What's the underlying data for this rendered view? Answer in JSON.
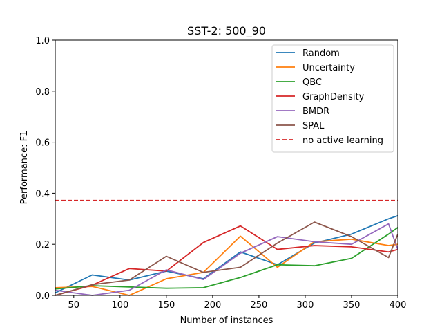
{
  "chart_data": {
    "type": "line",
    "title": "SST-2: 500_90",
    "xlabel": "Number of instances",
    "ylabel": "Performance: F1",
    "xlim": [
      30,
      400
    ],
    "ylim": [
      0,
      1.0
    ],
    "xticks": [
      50,
      100,
      150,
      200,
      250,
      300,
      350,
      400
    ],
    "yticks": [
      0.0,
      0.2,
      0.4,
      0.6,
      0.8,
      1.0
    ],
    "ytick_labels": [
      "0.0",
      "0.2",
      "0.4",
      "0.6",
      "0.8",
      "1.0"
    ],
    "x": [
      30,
      70,
      110,
      150,
      190,
      230,
      270,
      310,
      350,
      390,
      400
    ],
    "series": [
      {
        "name": "Random",
        "color": "#1f77b4",
        "values": [
          0.01,
          0.08,
          0.06,
          0.095,
          0.065,
          0.17,
          0.12,
          0.205,
          0.24,
          0.3,
          0.312
        ]
      },
      {
        "name": "Uncertainty",
        "color": "#ff7f0e",
        "values": [
          0.03,
          0.035,
          0.0,
          0.065,
          0.09,
          0.232,
          0.11,
          0.21,
          0.22,
          0.195,
          0.2
        ]
      },
      {
        "name": "QBC",
        "color": "#2ca02c",
        "values": [
          0.025,
          0.038,
          0.033,
          0.028,
          0.03,
          0.07,
          0.12,
          0.116,
          0.145,
          0.24,
          0.266
        ]
      },
      {
        "name": "GraphDensity",
        "color": "#d62728",
        "values": [
          0.0,
          0.04,
          0.105,
          0.095,
          0.207,
          0.272,
          0.18,
          0.195,
          0.19,
          0.17,
          0.18
        ]
      },
      {
        "name": "BMDR",
        "color": "#9467bd",
        "values": [
          0.02,
          0.0,
          0.02,
          0.1,
          0.062,
          0.165,
          0.23,
          0.21,
          0.2,
          0.28,
          0.18
        ]
      },
      {
        "name": "SPAL",
        "color": "#8c564b",
        "values": [
          0.0,
          0.042,
          0.06,
          0.153,
          0.09,
          0.11,
          0.205,
          0.287,
          0.23,
          0.148,
          0.24
        ]
      }
    ],
    "reference_line": {
      "name": "no active learning",
      "color": "#d62728",
      "style": "dashed",
      "value": 0.372
    },
    "legend_position": "top-right",
    "grid": false
  }
}
